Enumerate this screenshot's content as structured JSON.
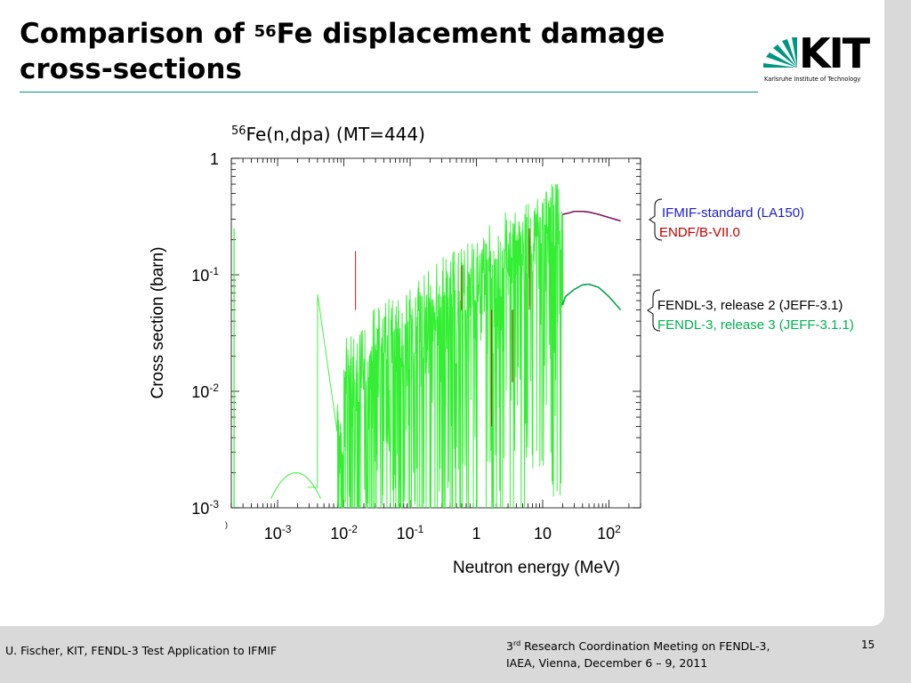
{
  "slide": {
    "title_prefix": "Comparison of ",
    "title_sup": "56",
    "title_main": "Fe displacement damage",
    "title_line2": "cross-sections"
  },
  "logo": {
    "text": "KIT",
    "subtitle": "Karlsruhe Institute of Technology",
    "brand_color": "#009682"
  },
  "chart_data": {
    "type": "line",
    "title_sup": "56",
    "title": "Fe(n,dpa) (MT=444)",
    "xlabel": "Neutron energy (MeV)",
    "ylabel": "Cross section (barn)",
    "xscale": "log",
    "yscale": "log",
    "xlim": [
      0.0002,
      300
    ],
    "ylim": [
      0.001,
      1
    ],
    "x_ticks": [
      {
        "value": 0.001,
        "base": "10",
        "exp": "-3"
      },
      {
        "value": 0.01,
        "base": "10",
        "exp": "-2"
      },
      {
        "value": 0.1,
        "base": "10",
        "exp": "-1"
      },
      {
        "value": 1,
        "base": "1",
        "exp": ""
      },
      {
        "value": 10,
        "base": "10",
        "exp": ""
      },
      {
        "value": 100,
        "base": "10",
        "exp": "2"
      }
    ],
    "y_ticks": [
      {
        "value": 1,
        "base": "1",
        "exp": ""
      },
      {
        "value": 0.1,
        "base": "10",
        "exp": "-1"
      },
      {
        "value": 0.01,
        "base": "10",
        "exp": "-2"
      },
      {
        "value": 0.001,
        "base": "10",
        "exp": "-3"
      }
    ],
    "corner_label": ")",
    "series": [
      {
        "name": "IFMIF-standard (LA150)",
        "color": "#1a1acc",
        "group": "upper",
        "x": [
          20,
          25,
          30,
          40,
          50,
          70,
          100,
          150
        ],
        "y": [
          0.33,
          0.34,
          0.35,
          0.35,
          0.345,
          0.33,
          0.31,
          0.29
        ]
      },
      {
        "name": "ENDF/B-VII.0",
        "color": "#c00000",
        "group": "upper",
        "x": [
          20,
          25,
          30,
          40,
          50,
          70,
          100,
          150
        ],
        "y": [
          0.33,
          0.34,
          0.35,
          0.35,
          0.345,
          0.33,
          0.31,
          0.29
        ]
      },
      {
        "name": "FENDL-3, release 2 (JEFF-3.1)",
        "color": "#000000",
        "group": "lower",
        "x": [
          20,
          22,
          30,
          40,
          50,
          70,
          100,
          150
        ],
        "y": [
          0.055,
          0.065,
          0.075,
          0.082,
          0.083,
          0.078,
          0.065,
          0.05
        ]
      },
      {
        "name": "FENDL-3, release 3 (JEFF-3.1.1)",
        "color": "#00b050",
        "group": "lower",
        "x": [
          20,
          22,
          30,
          40,
          50,
          70,
          100,
          150
        ],
        "y": [
          0.055,
          0.065,
          0.075,
          0.082,
          0.083,
          0.078,
          0.065,
          0.05
        ]
      }
    ],
    "bracket_color": "#000000",
    "resonance_color": "#33ee33"
  },
  "footer": {
    "left": "U. Fischer, KIT, FENDL-3 Test Application to IFMIF",
    "center_sup_base": "3",
    "center_sup": "rd",
    "center_line1": " Research Coordination Meeting on FENDL-3,",
    "center_line2": "IAEA, Vienna, December 6 – 9, 2011",
    "page_number": "15"
  }
}
